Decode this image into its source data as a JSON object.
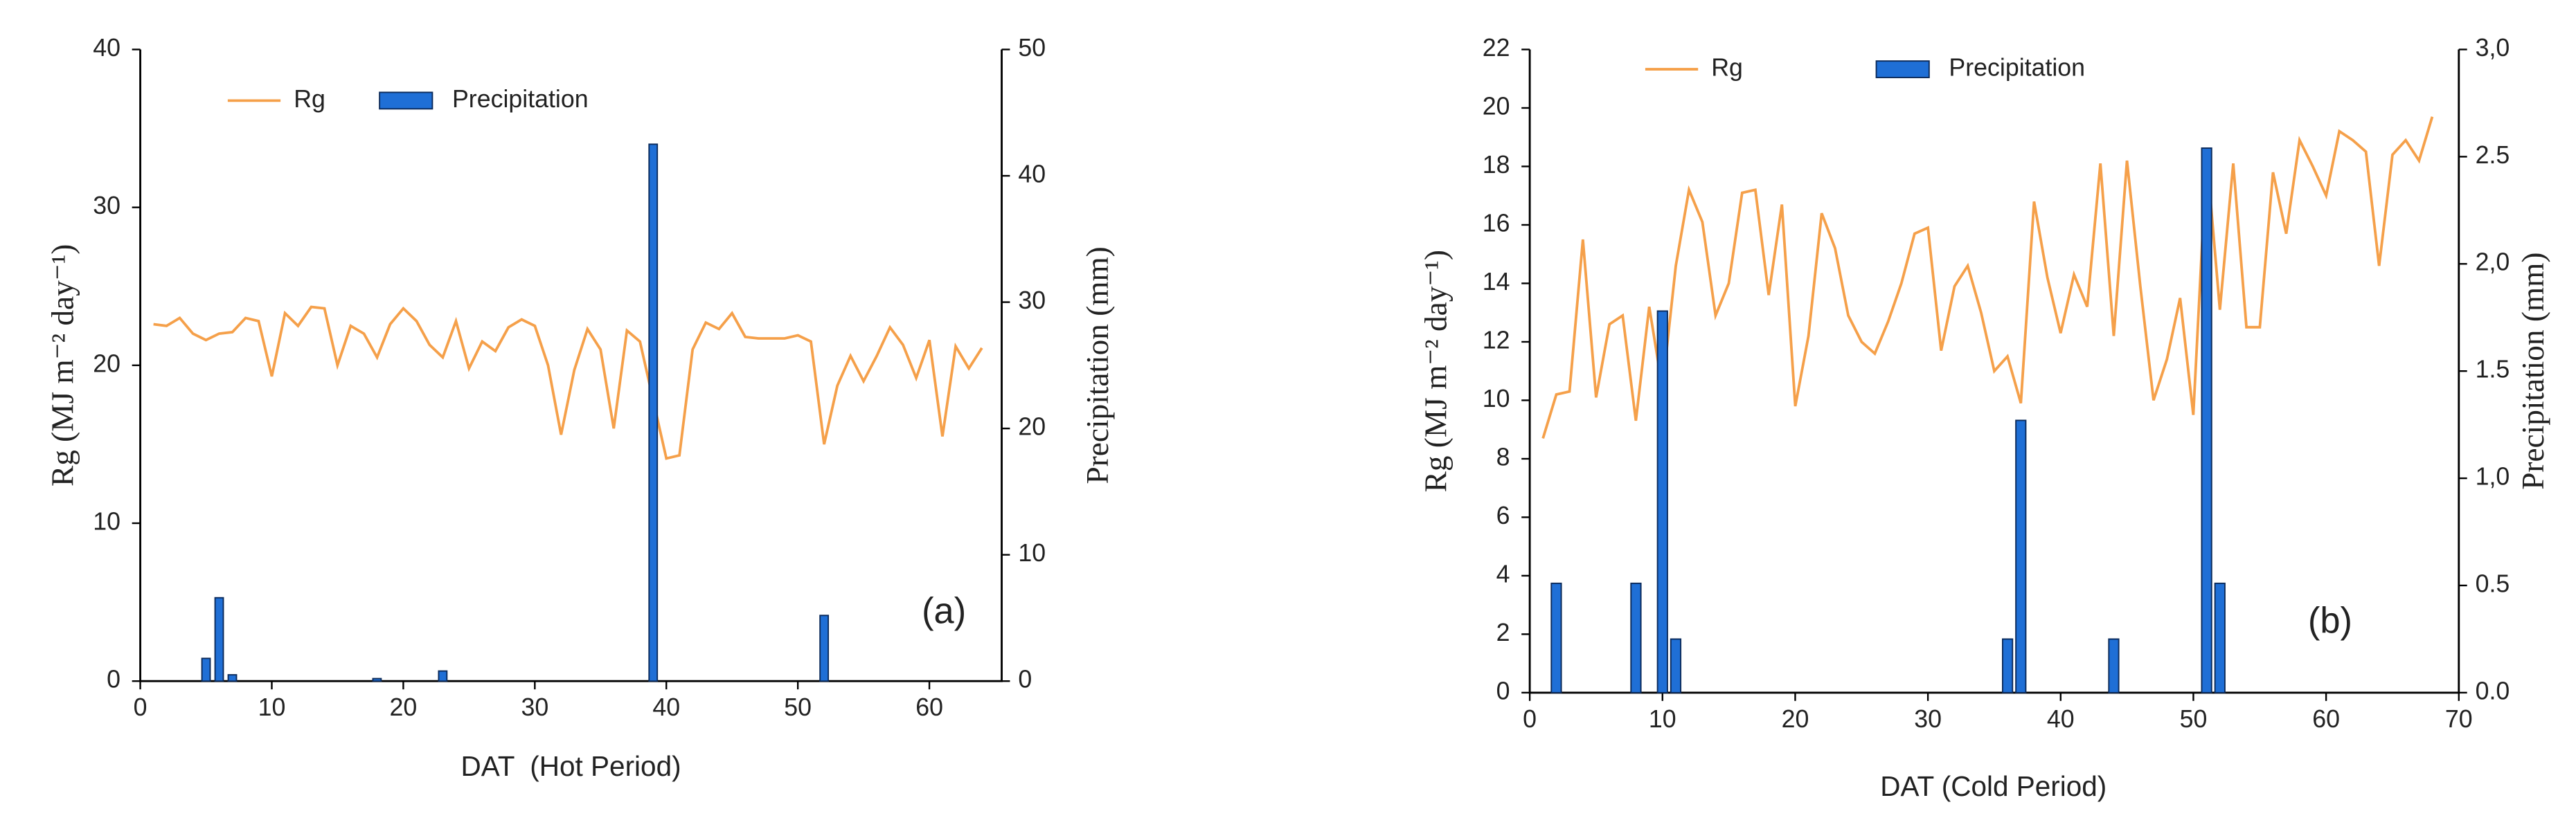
{
  "chart_data": [
    {
      "type": "combo",
      "xlabel": "DAT  (Hot Period)",
      "ylabel": "Rg (MJ m⁻² day⁻¹)",
      "y2label": "Precipitation (mm)",
      "annotation": "(a)",
      "xlim": [
        0,
        65.5
      ],
      "xticks": [
        0,
        10,
        20,
        30,
        40,
        50,
        60
      ],
      "ylim": [
        0,
        40
      ],
      "yticks": [
        0,
        10,
        20,
        30,
        40
      ],
      "y2lim": [
        0,
        50
      ],
      "y2ticks": [
        0,
        10,
        20,
        30,
        40,
        50
      ],
      "series": [
        {
          "name": "Rg",
          "type": "line",
          "color": "#f5a04a",
          "axis": "y",
          "x": [
            1,
            2,
            3,
            4,
            5,
            6,
            7,
            8,
            9,
            10,
            11,
            12,
            13,
            14,
            15,
            16,
            17,
            18,
            19,
            20,
            21,
            22,
            23,
            24,
            25,
            26,
            27,
            28,
            29,
            30,
            31,
            32,
            33,
            34,
            35,
            36,
            37,
            38,
            39,
            40,
            41,
            42,
            43,
            44,
            45,
            46,
            47,
            48,
            49,
            50,
            51,
            52,
            53,
            54,
            55,
            56,
            57,
            58,
            59,
            60,
            61,
            62,
            63,
            64
          ],
          "values": [
            22.6,
            22.5,
            23,
            22,
            21.6,
            22,
            22.1,
            23,
            22.8,
            19.3,
            23.3,
            22.5,
            23.7,
            23.6,
            20,
            22.5,
            22,
            20.5,
            22.6,
            23.6,
            22.8,
            21.3,
            20.5,
            22.8,
            19.8,
            21.5,
            20.9,
            22.4,
            22.9,
            22.5,
            20,
            15.6,
            19.7,
            22.3,
            21,
            16,
            22.2,
            21.5,
            17.8,
            14.1,
            14.3,
            21,
            22.7,
            22.3,
            23.3,
            21.8,
            21.7,
            21.7,
            21.7,
            21.9,
            21.5,
            15,
            18.7,
            20.6,
            19,
            20.6,
            22.4,
            21.3,
            19.2,
            21.6,
            15.5,
            21.2,
            19.8,
            21.1
          ]
        },
        {
          "name": "Precipitation",
          "type": "bar",
          "color": "#1f6fd6",
          "axis": "y2",
          "x": [
            5,
            6,
            7,
            18,
            23,
            39,
            52
          ],
          "values": [
            1.8,
            6.6,
            0.5,
            0.2,
            0.8,
            42.5,
            5.2
          ]
        }
      ]
    },
    {
      "type": "combo",
      "xlabel": "DAT (Cold Period)",
      "ylabel": "Rg (MJ m⁻² day⁻¹)",
      "y2label": "Precipitation (mm)",
      "annotation": "(b)",
      "xlim": [
        0,
        70
      ],
      "xticks": [
        0,
        10,
        20,
        30,
        40,
        50,
        60,
        70
      ],
      "ylim": [
        0,
        22
      ],
      "yticks": [
        0,
        2,
        4,
        6,
        8,
        10,
        12,
        14,
        16,
        18,
        20,
        22
      ],
      "y2lim": [
        0,
        3
      ],
      "y2ticks": [
        {
          "value": 0,
          "label": "0.0"
        },
        0.5,
        {
          "value": 1,
          "label": "1,0"
        },
        1.5,
        {
          "value": 2,
          "label": "2,0"
        },
        2.5,
        {
          "value": 3,
          "label": "3,0"
        }
      ],
      "series": [
        {
          "name": "Rg",
          "type": "line",
          "color": "#f5a04a",
          "axis": "y",
          "x": [
            1,
            2,
            3,
            4,
            5,
            6,
            7,
            8,
            9,
            10,
            11,
            12,
            13,
            14,
            15,
            16,
            17,
            18,
            19,
            20,
            21,
            22,
            23,
            24,
            25,
            26,
            27,
            28,
            29,
            30,
            31,
            32,
            33,
            34,
            35,
            36,
            37,
            38,
            39,
            40,
            41,
            42,
            43,
            44,
            45,
            46,
            47,
            48,
            49,
            50,
            51,
            52,
            53,
            54,
            55,
            56,
            57,
            58,
            59,
            60,
            61,
            62,
            63,
            64,
            65,
            66,
            67,
            68
          ],
          "values": [
            8.7,
            10.2,
            10.3,
            15.5,
            10.1,
            12.6,
            12.9,
            9.3,
            13.2,
            10.4,
            14.6,
            17.2,
            16.1,
            12.9,
            14,
            17.1,
            17.2,
            13.6,
            16.7,
            9.8,
            12.2,
            16.4,
            15.2,
            12.9,
            12,
            11.6,
            12.7,
            14,
            15.7,
            15.9,
            11.7,
            13.9,
            14.6,
            13,
            11,
            11.5,
            9.9,
            16.8,
            14.2,
            12.3,
            14.3,
            13.2,
            18.1,
            12.2,
            18.2,
            13.9,
            10,
            11.4,
            13.5,
            9.5,
            18.4,
            13.1,
            18.1,
            12.5,
            12.5,
            17.8,
            15.7,
            18.9,
            18,
            17,
            19.2,
            18.9,
            18.5,
            14.6,
            18.4,
            18.9,
            18.2,
            19.7
          ]
        },
        {
          "name": "Precipitation",
          "type": "bar",
          "color": "#1f6fd6",
          "axis": "y2",
          "x": [
            2,
            8,
            10,
            11,
            36,
            37,
            44,
            51,
            52
          ],
          "values": [
            0.51,
            0.51,
            1.78,
            0.25,
            0.25,
            1.27,
            0.25,
            2.54,
            0.51
          ]
        }
      ]
    }
  ]
}
